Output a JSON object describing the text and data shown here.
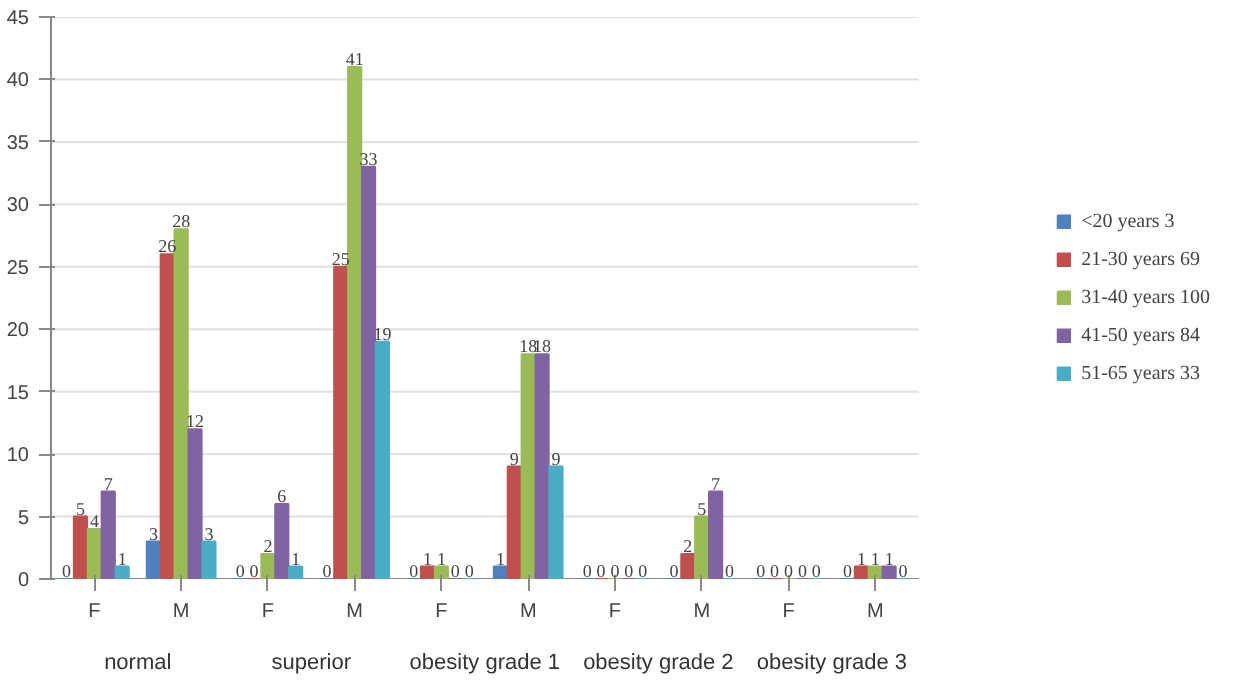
{
  "chart_data": {
    "type": "bar",
    "categories": [
      "F",
      "M",
      "F",
      "M",
      "F",
      "M",
      "F",
      "M",
      "F",
      "M"
    ],
    "annotations": [
      "normal",
      "superior",
      "obesity grade 1",
      "obesity grade 2",
      "obesity grade 3"
    ],
    "series": [
      {
        "name": "<20 years 3",
        "color": "#4f81bd",
        "values": [
          0,
          3,
          0,
          0,
          0,
          1,
          0,
          0,
          0,
          0
        ]
      },
      {
        "name": "21-30 years 69",
        "color": "#c0504d",
        "values": [
          5,
          26,
          0,
          25,
          1,
          9,
          0,
          2,
          0,
          1
        ]
      },
      {
        "name": "31-40 years 100",
        "color": "#9bbb59",
        "values": [
          4,
          28,
          2,
          41,
          1,
          18,
          0,
          5,
          0,
          1
        ]
      },
      {
        "name": "41-50 years 84",
        "color": "#8064a2",
        "values": [
          7,
          12,
          6,
          33,
          0,
          18,
          0,
          7,
          0,
          1
        ]
      },
      {
        "name": "51-65 years 33",
        "color": "#4bacc6",
        "values": [
          1,
          3,
          1,
          19,
          0,
          9,
          0,
          0,
          0,
          0
        ]
      }
    ],
    "ylim": [
      0,
      45
    ],
    "yticks": [
      0,
      5,
      10,
      15,
      20,
      25,
      30,
      35,
      40,
      45
    ],
    "grid": "y",
    "legend": "right",
    "data_labels": true
  }
}
